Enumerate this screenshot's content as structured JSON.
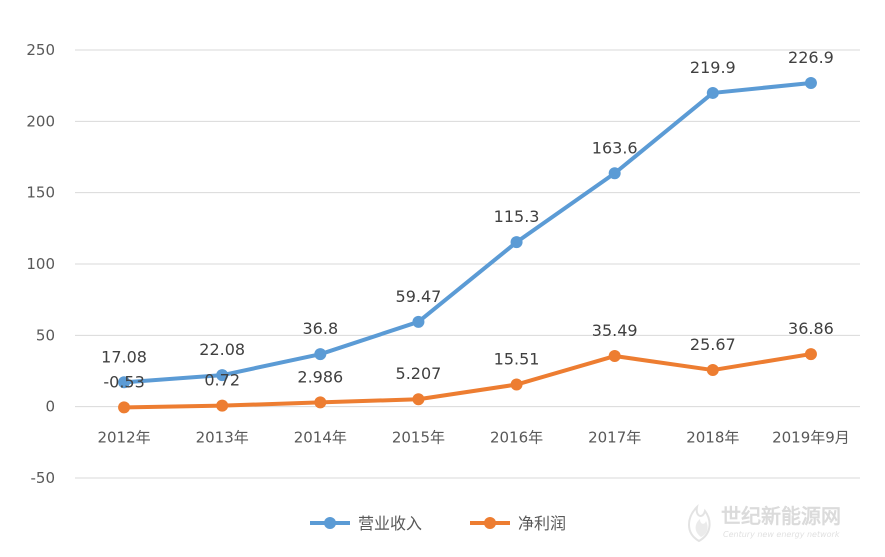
{
  "chart_data": {
    "type": "line",
    "categories": [
      "2012年",
      "2013年",
      "2014年",
      "2015年",
      "2016年",
      "2017年",
      "2018年",
      "2019年9月"
    ],
    "series": [
      {
        "name": "营业收入",
        "color": "#5b9bd5",
        "values": [
          17.08,
          22.08,
          36.8,
          59.47,
          115.3,
          163.6,
          219.9,
          226.9
        ],
        "labels": [
          "17.08",
          "22.08",
          "36.8",
          "59.47",
          "115.3",
          "163.6",
          "219.9",
          "226.9"
        ]
      },
      {
        "name": "净利润",
        "color": "#ed7d31",
        "values": [
          -0.53,
          0.72,
          2.986,
          5.207,
          15.51,
          35.49,
          25.67,
          36.86
        ],
        "labels": [
          "-0.53",
          "0.72",
          "2.986",
          "5.207",
          "15.51",
          "35.49",
          "25.67",
          "36.86"
        ]
      }
    ],
    "yticks": [
      "-50",
      "0",
      "50",
      "100",
      "150",
      "200",
      "250"
    ],
    "ylim": [
      -50,
      250
    ],
    "grid": true,
    "legend": "bottom"
  },
  "watermark": {
    "text": "世纪新能源网",
    "subtext": "Century new energy network"
  }
}
